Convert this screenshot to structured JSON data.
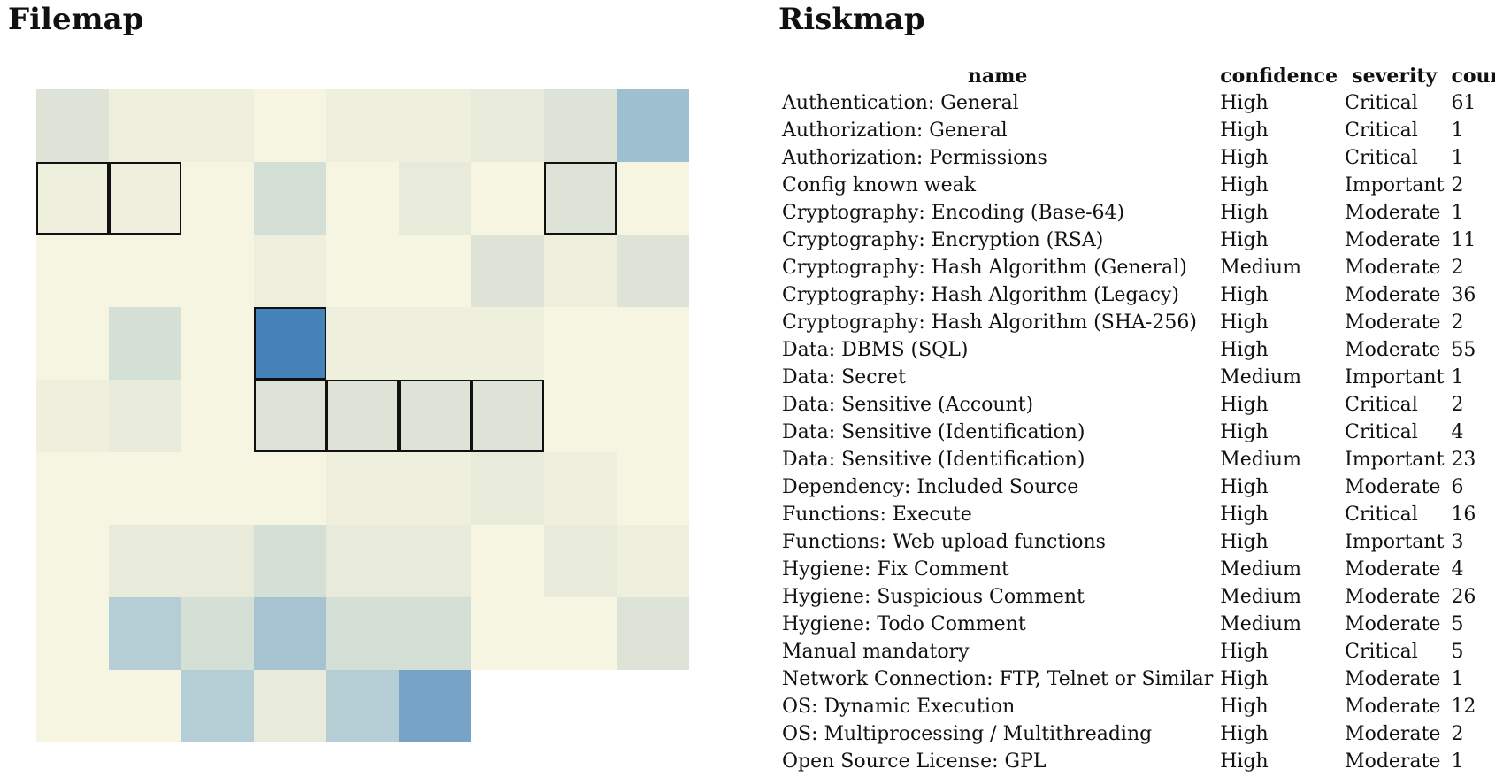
{
  "filemap": {
    "title": "Filemap",
    "colors": {
      "c0": "#f5f5e2",
      "c1": "#eef0dd",
      "c2": "#e8ebda",
      "c3": "#dde3d6",
      "c4": "#d4dfd6",
      "c5": "#c6d6d7",
      "c6": "#b5cdd5",
      "c7": "#a7c3d1",
      "c8": "#9ebfd0",
      "c9": "#77a3c6",
      "c10": "#4683b8"
    },
    "rows": [
      [
        "c3",
        "c1",
        "c1",
        "c0",
        "c1",
        "c1",
        "c2",
        "c3",
        "c8"
      ],
      [
        "c1",
        "c1",
        "c0",
        "c4",
        "c0",
        "c2",
        "c0",
        "c3",
        "c0"
      ],
      [
        "c0",
        "c0",
        "c0",
        "c1",
        "c0",
        "c0",
        "c3",
        "c1",
        "c3"
      ],
      [
        "c0",
        "c4",
        "c0",
        "c10",
        "c1",
        "c1",
        "c1",
        "c0",
        "c0"
      ],
      [
        "c1",
        "c2",
        "c0",
        "c3",
        "c3",
        "c3",
        "c3",
        "c0",
        "c0"
      ],
      [
        "c0",
        "c0",
        "c0",
        "c0",
        "c1",
        "c1",
        "c2",
        "c1",
        "c0"
      ],
      [
        "c0",
        "c2",
        "c2",
        "c4",
        "c2",
        "c2",
        "c0",
        "c2",
        "c1"
      ],
      [
        "c0",
        "c6",
        "c4",
        "c7",
        "c4",
        "c4",
        "c0",
        "c0",
        "c3"
      ],
      [
        "c0",
        "c0",
        "c6",
        "c2",
        "c6",
        "c9"
      ]
    ],
    "selected": [
      [
        1,
        0
      ],
      [
        1,
        1
      ],
      [
        1,
        7
      ],
      [
        3,
        3
      ],
      [
        4,
        3
      ],
      [
        4,
        4
      ],
      [
        4,
        5
      ],
      [
        4,
        6
      ]
    ]
  },
  "riskmap": {
    "title": "Riskmap",
    "columns": {
      "name": "name",
      "confidence": "confidence",
      "severity": "severity",
      "count": "count"
    },
    "rows": [
      {
        "name": "Authentication: General",
        "confidence": "High",
        "severity": "Critical",
        "count": "61"
      },
      {
        "name": "Authorization: General",
        "confidence": "High",
        "severity": "Critical",
        "count": "1"
      },
      {
        "name": "Authorization: Permissions",
        "confidence": "High",
        "severity": "Critical",
        "count": "1"
      },
      {
        "name": "Config known weak",
        "confidence": "High",
        "severity": "Important",
        "count": "2"
      },
      {
        "name": "Cryptography: Encoding (Base-64)",
        "confidence": "High",
        "severity": "Moderate",
        "count": "1"
      },
      {
        "name": "Cryptography: Encryption (RSA)",
        "confidence": "High",
        "severity": "Moderate",
        "count": "11"
      },
      {
        "name": "Cryptography: Hash Algorithm (General)",
        "confidence": "Medium",
        "severity": "Moderate",
        "count": "2"
      },
      {
        "name": "Cryptography: Hash Algorithm (Legacy)",
        "confidence": "High",
        "severity": "Moderate",
        "count": "36"
      },
      {
        "name": "Cryptography: Hash Algorithm (SHA-256)",
        "confidence": "High",
        "severity": "Moderate",
        "count": "2"
      },
      {
        "name": "Data: DBMS (SQL)",
        "confidence": "High",
        "severity": "Moderate",
        "count": "55"
      },
      {
        "name": "Data: Secret",
        "confidence": "Medium",
        "severity": "Important",
        "count": "1"
      },
      {
        "name": "Data: Sensitive (Account)",
        "confidence": "High",
        "severity": "Critical",
        "count": "2"
      },
      {
        "name": "Data: Sensitive (Identification)",
        "confidence": "High",
        "severity": "Critical",
        "count": "4"
      },
      {
        "name": "Data: Sensitive (Identification)",
        "confidence": "Medium",
        "severity": "Important",
        "count": "23"
      },
      {
        "name": "Dependency: Included Source",
        "confidence": "High",
        "severity": "Moderate",
        "count": "6"
      },
      {
        "name": "Functions: Execute",
        "confidence": "High",
        "severity": "Critical",
        "count": "16"
      },
      {
        "name": "Functions: Web upload functions",
        "confidence": "High",
        "severity": "Important",
        "count": "3"
      },
      {
        "name": "Hygiene: Fix Comment",
        "confidence": "Medium",
        "severity": "Moderate",
        "count": "4"
      },
      {
        "name": "Hygiene: Suspicious Comment",
        "confidence": "Medium",
        "severity": "Moderate",
        "count": "26"
      },
      {
        "name": "Hygiene: Todo Comment",
        "confidence": "Medium",
        "severity": "Moderate",
        "count": "5"
      },
      {
        "name": "Manual mandatory",
        "confidence": "High",
        "severity": "Critical",
        "count": "5"
      },
      {
        "name": "Network Connection: FTP, Telnet or Similar",
        "confidence": "High",
        "severity": "Moderate",
        "count": "1"
      },
      {
        "name": "OS: Dynamic Execution",
        "confidence": "High",
        "severity": "Moderate",
        "count": "12"
      },
      {
        "name": "OS: Multiprocessing / Multithreading",
        "confidence": "High",
        "severity": "Moderate",
        "count": "2"
      },
      {
        "name": "Open Source License: GPL",
        "confidence": "High",
        "severity": "Moderate",
        "count": "1"
      }
    ]
  }
}
